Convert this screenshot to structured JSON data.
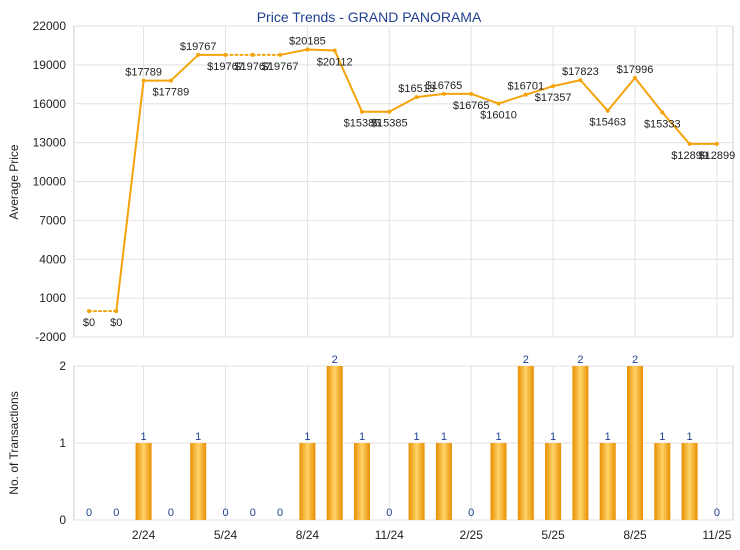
{
  "chart_data": [
    {
      "type": "line",
      "title": "Price Trends - GRAND PANORAMA",
      "ylabel": "Average Price",
      "ylim": [
        -2000,
        22000
      ],
      "y_ticks": [
        "22000",
        "19000",
        "16000",
        "13000",
        "10000",
        "7000",
        "4000",
        "1000",
        "-2000"
      ],
      "grid": true,
      "x": [
        "2023-12",
        "2024-01",
        "2024-02",
        "2024-03",
        "2024-04",
        "2024-05",
        "2024-06",
        "2024-07",
        "2024-08",
        "2024-09",
        "2024-10",
        "2024-11",
        "2024-12",
        "2025-01",
        "2025-02",
        "2025-03",
        "2025-04",
        "2025-05",
        "2025-06",
        "2025-07",
        "2025-08",
        "2025-09",
        "2025-10",
        "2025-11"
      ],
      "values": [
        0,
        0,
        17789,
        17789,
        19767,
        19767,
        19767,
        19767,
        20185,
        20112,
        15385,
        15385,
        16513,
        16765,
        16765,
        16010,
        16701,
        17357,
        17823,
        15463,
        17996,
        15333,
        12899,
        12899
      ],
      "labels": [
        "$0",
        "$0",
        "$17789",
        "$17789",
        "$19767",
        "$19767",
        "$19767",
        "$19767",
        "$20185",
        "$20112",
        "$15385",
        "$15385",
        "$16513",
        "$16765",
        "$16765",
        "$16010",
        "$16701",
        "$17357",
        "$17823",
        "$15463",
        "$17996",
        "$15333",
        "$12899",
        "$12899"
      ],
      "actual_transaction": [
        false,
        false,
        true,
        false,
        true,
        false,
        false,
        false,
        true,
        true,
        true,
        false,
        true,
        true,
        false,
        true,
        true,
        true,
        true,
        true,
        true,
        true,
        true,
        false
      ],
      "line_color": "#f5a30a"
    },
    {
      "type": "bar",
      "ylabel": "No. of Transactions",
      "ylim": [
        0,
        2
      ],
      "y_ticks": [
        "2",
        "1",
        "0"
      ],
      "x": [
        "2023-12",
        "2024-01",
        "2024-02",
        "2024-03",
        "2024-04",
        "2024-05",
        "2024-06",
        "2024-07",
        "2024-08",
        "2024-09",
        "2024-10",
        "2024-11",
        "2024-12",
        "2025-01",
        "2025-02",
        "2025-03",
        "2025-04",
        "2025-05",
        "2025-06",
        "2025-07",
        "2025-08",
        "2025-09",
        "2025-10",
        "2025-11"
      ],
      "values": [
        0,
        0,
        1,
        0,
        1,
        0,
        0,
        0,
        1,
        2,
        1,
        0,
        1,
        1,
        0,
        1,
        2,
        1,
        2,
        1,
        2,
        1,
        1,
        0
      ],
      "labels": [
        "0",
        "0",
        "1",
        "0",
        "1",
        "0",
        "0",
        "0",
        "1",
        "2",
        "1",
        "0",
        "1",
        "1",
        "0",
        "1",
        "2",
        "1",
        "2",
        "1",
        "2",
        "1",
        "1",
        "0"
      ],
      "x_tick_labels": [
        "2/24",
        "5/24",
        "8/24",
        "11/24",
        "2/25",
        "5/25",
        "8/25",
        "11/25"
      ],
      "x_tick_index": [
        2,
        5,
        8,
        11,
        14,
        17,
        20,
        23
      ],
      "bar_color": "#f5a30a"
    }
  ]
}
